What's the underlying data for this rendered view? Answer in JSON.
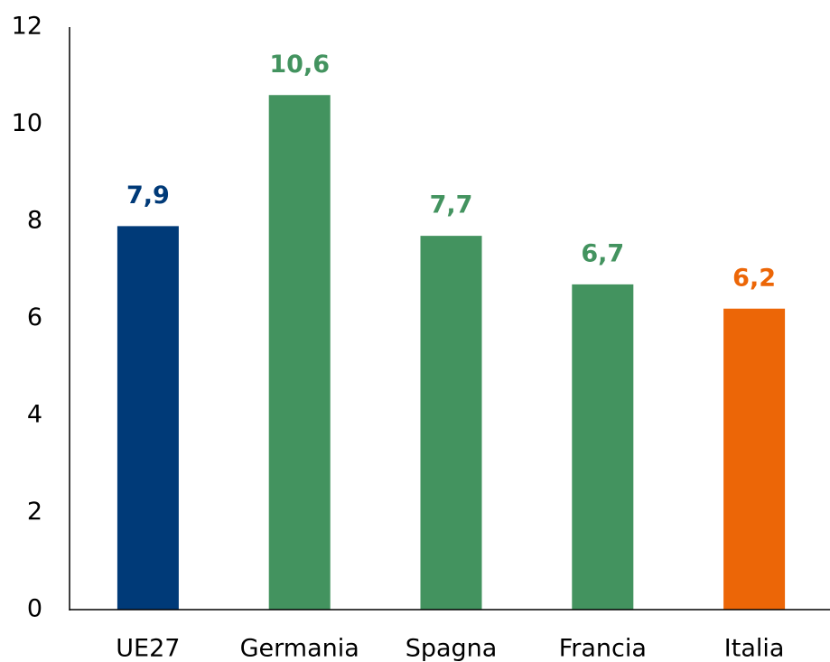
{
  "chart_data": {
    "type": "bar",
    "categories": [
      "UE27",
      "Germania",
      "Spagna",
      "Francia",
      "Italia"
    ],
    "values": [
      7.9,
      10.6,
      7.7,
      6.7,
      6.2
    ],
    "value_labels": [
      "7,9",
      "10,6",
      "7,7",
      "6,7",
      "6,2"
    ],
    "colors": [
      "#003a78",
      "#43935f",
      "#43935f",
      "#43935f",
      "#ec6607"
    ],
    "ylim": [
      0,
      12
    ],
    "yticks": [
      0,
      2,
      4,
      6,
      8,
      10,
      12
    ],
    "grid": false
  }
}
